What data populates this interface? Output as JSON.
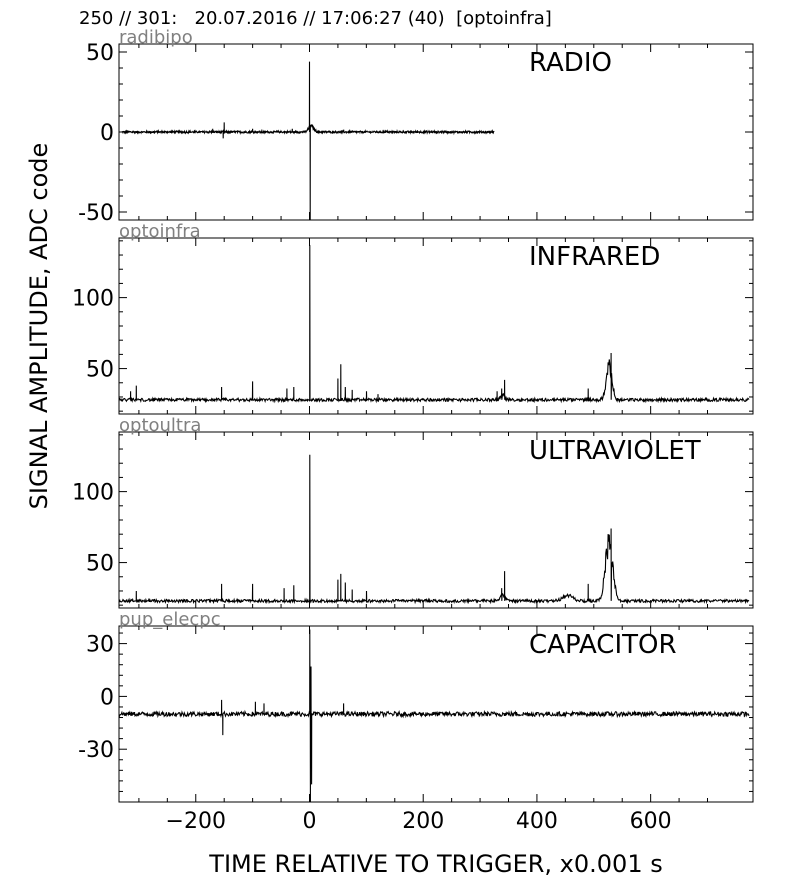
{
  "header": "250 // 301:   20.07.2016 // 17:06:27 (40)  [optoinfra]",
  "chart_data": {
    "type": "line",
    "xlabel": "TIME RELATIVE TO TRIGGER,   x0.001 s",
    "ylabel": "SIGNAL AMPLITUDE,  ADC code",
    "xlim": [
      -335,
      780
    ],
    "x_ticks": [
      -200,
      0,
      200,
      400,
      600
    ],
    "x_tick_labels": [
      "−200",
      "0",
      "200",
      "400",
      "600"
    ],
    "grid": false,
    "panels": [
      {
        "channel": "radibipo",
        "title": "RADIO",
        "ylim": [
          -55,
          55
        ],
        "y_ticks": [
          50,
          0,
          -50
        ],
        "y_tick_labels": [
          "50",
          "0",
          "-50"
        ],
        "trace": {
          "x_range": [
            -330,
            325
          ],
          "baseline": 0,
          "noise": 0.6,
          "spikes": [
            {
              "x": 0,
              "y": 44
            },
            {
              "x": 1,
              "y": -55
            },
            {
              "x": -150,
              "y": 6
            },
            {
              "x": -152,
              "y": -4
            },
            {
              "x": -170,
              "y": 2
            },
            {
              "x": -100,
              "y": 2
            },
            {
              "x": -30,
              "y": 2
            },
            {
              "x": 60,
              "y": 1.5
            }
          ],
          "peaks": [
            {
              "x": 3,
              "height": 4,
              "width": 6
            }
          ]
        }
      },
      {
        "channel": "optoinfra",
        "title": "INFRARED",
        "ylim": [
          18,
          142
        ],
        "y_ticks": [
          100,
          50
        ],
        "y_tick_labels": [
          "100",
          "50"
        ],
        "trace": {
          "x_range": [
            -335,
            773
          ],
          "baseline": 28,
          "noise": 1.1,
          "spikes": [
            {
              "x": 0,
              "y": 137
            },
            {
              "x": 55,
              "y": 53
            },
            {
              "x": -155,
              "y": 37
            },
            {
              "x": -100,
              "y": 41
            },
            {
              "x": -305,
              "y": 38
            },
            {
              "x": -315,
              "y": 34
            },
            {
              "x": -40,
              "y": 36
            },
            {
              "x": -28,
              "y": 37
            },
            {
              "x": 50,
              "y": 43
            },
            {
              "x": 63,
              "y": 37
            },
            {
              "x": 75,
              "y": 35
            },
            {
              "x": 100,
              "y": 34
            },
            {
              "x": 120,
              "y": 32
            },
            {
              "x": 330,
              "y": 34
            },
            {
              "x": 338,
              "y": 36
            },
            {
              "x": 343,
              "y": 42
            },
            {
              "x": 490,
              "y": 36
            },
            {
              "x": 530,
              "y": 61
            }
          ],
          "peaks": [
            {
              "x": 527,
              "height": 23,
              "width": 7
            },
            {
              "x": 340,
              "height": 4,
              "width": 5
            }
          ]
        }
      },
      {
        "channel": "optoultra",
        "title": "ULTRAVIOLET",
        "ylim": [
          18,
          142
        ],
        "y_ticks": [
          100,
          50
        ],
        "y_tick_labels": [
          "100",
          "50"
        ],
        "trace": {
          "x_range": [
            -335,
            773
          ],
          "baseline": 23,
          "noise": 1.0,
          "spikes": [
            {
              "x": 0,
              "y": 126
            },
            {
              "x": 55,
              "y": 42
            },
            {
              "x": -155,
              "y": 35
            },
            {
              "x": -100,
              "y": 35
            },
            {
              "x": -305,
              "y": 30
            },
            {
              "x": -45,
              "y": 32
            },
            {
              "x": -28,
              "y": 34
            },
            {
              "x": 50,
              "y": 38
            },
            {
              "x": 63,
              "y": 36
            },
            {
              "x": 75,
              "y": 31
            },
            {
              "x": 100,
              "y": 30
            },
            {
              "x": 338,
              "y": 32
            },
            {
              "x": 343,
              "y": 44
            },
            {
              "x": 490,
              "y": 35
            },
            {
              "x": 530,
              "y": 74
            }
          ],
          "peaks": [
            {
              "x": 527,
              "height": 42,
              "width": 9
            },
            {
              "x": 455,
              "height": 4,
              "width": 12
            },
            {
              "x": 340,
              "height": 5,
              "width": 5
            }
          ]
        }
      },
      {
        "channel": "pup_elecpc",
        "title": "CAPACITOR",
        "ylim": [
          -60,
          40
        ],
        "y_ticks": [
          30,
          0,
          -30
        ],
        "y_tick_labels": [
          "30",
          "0",
          "-30"
        ],
        "trace": {
          "x_range": [
            -335,
            773
          ],
          "baseline": -10,
          "noise": 1.3,
          "spikes": [
            {
              "x": 0,
              "y": 38
            },
            {
              "x": 1,
              "y": -60
            },
            {
              "x": 2,
              "y": 17
            },
            {
              "x": 3,
              "y": -50
            },
            {
              "x": -155,
              "y": -2
            },
            {
              "x": -153,
              "y": -22
            },
            {
              "x": -80,
              "y": -4
            },
            {
              "x": -95,
              "y": -3
            },
            {
              "x": 60,
              "y": -4
            }
          ],
          "peaks": []
        }
      }
    ]
  }
}
